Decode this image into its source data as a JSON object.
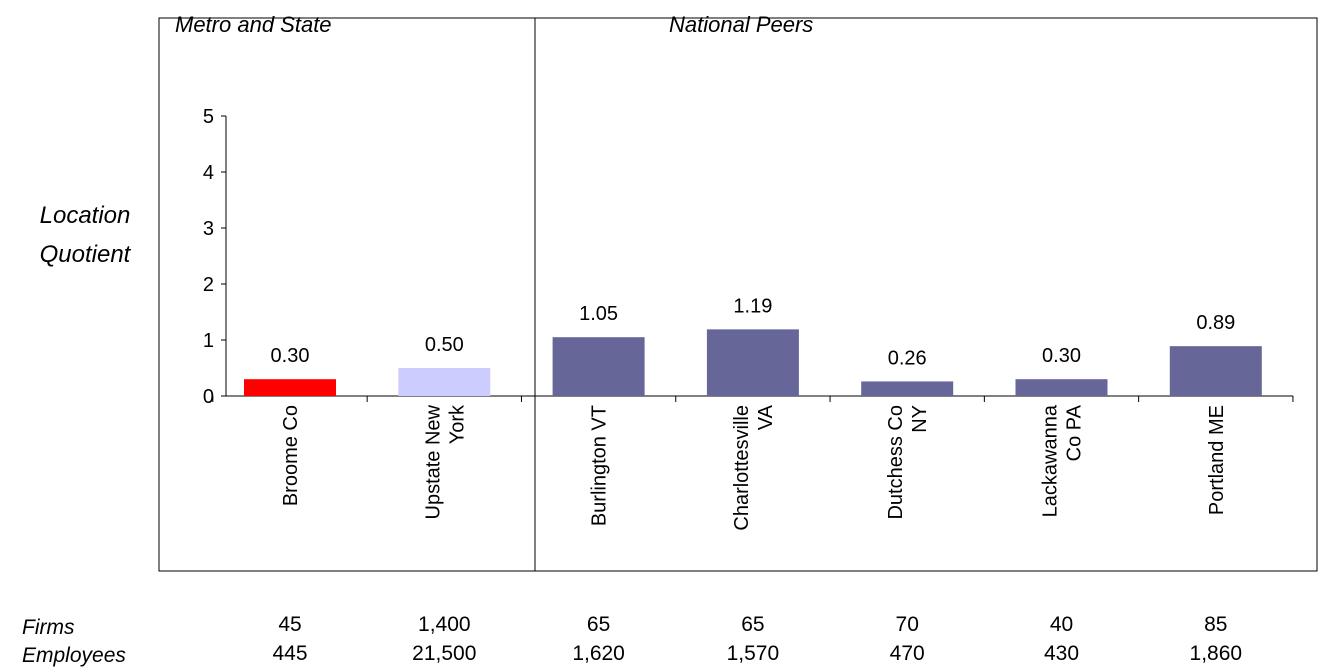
{
  "headers": {
    "left": "Metro and State",
    "right": "National Peers"
  },
  "ylabel_lines": [
    "Location",
    "Quotient"
  ],
  "chart_data": {
    "type": "bar",
    "categories": [
      [
        "Broome Co"
      ],
      [
        "Upstate New",
        "York"
      ],
      [
        "Burlington VT"
      ],
      [
        "Charlottesville",
        "VA"
      ],
      [
        "Dutchess Co",
        "NY"
      ],
      [
        "Lackawanna",
        "Co PA"
      ],
      [
        "Portland ME"
      ]
    ],
    "values": [
      0.3,
      0.5,
      1.05,
      1.19,
      0.26,
      0.3,
      0.89
    ],
    "value_labels": [
      "0.30",
      "0.50",
      "1.05",
      "1.19",
      "0.26",
      "0.30",
      "0.89"
    ],
    "colors": [
      "#ff0000",
      "#ccccff",
      "#666699",
      "#666699",
      "#666699",
      "#666699",
      "#666699"
    ],
    "ylim": [
      0,
      5
    ],
    "yticks": [
      "0",
      "1",
      "2",
      "3",
      "4",
      "5"
    ],
    "grid": false
  },
  "table": {
    "row_labels": [
      "Firms",
      "Employees"
    ],
    "firms": [
      "45",
      "1,400",
      "65",
      "65",
      "70",
      "40",
      "85"
    ],
    "employees": [
      "445",
      "21,500",
      "1,620",
      "1,570",
      "470",
      "430",
      "1,860"
    ]
  }
}
